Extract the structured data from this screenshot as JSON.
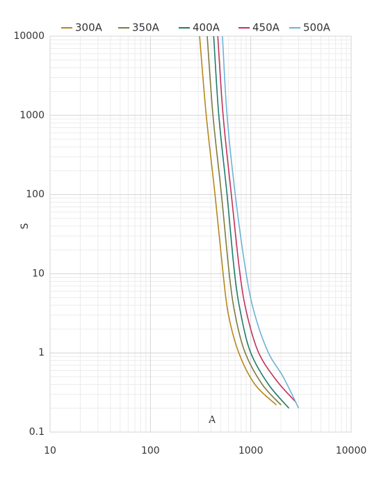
{
  "chart_data": {
    "type": "line",
    "log_x": true,
    "log_y": true,
    "grid": true,
    "x_label": "A",
    "y_label": "S",
    "xlim": [
      10,
      10000
    ],
    "xticks": [
      10,
      100,
      1000,
      10000
    ],
    "ylim": [
      0.1,
      10000
    ],
    "yticks": [
      0.1,
      1,
      10,
      100,
      1000,
      10000
    ],
    "series": [
      {
        "name": "300A",
        "color": "#b5861c",
        "x": [
          309,
          360,
          440,
          530,
          600,
          760,
          1100,
          1800
        ],
        "values": [
          10000,
          1000,
          100,
          10,
          3,
          1,
          0.4,
          0.22
        ]
      },
      {
        "name": "350A",
        "color": "#7d7a3e",
        "x": [
          368,
          420,
          510,
          610,
          700,
          880,
          1300,
          2000
        ],
        "values": [
          10000,
          1000,
          100,
          10,
          3,
          1,
          0.4,
          0.22
        ]
      },
      {
        "name": "400A",
        "color": "#1f7a68",
        "x": [
          427,
          480,
          580,
          690,
          800,
          1000,
          1500,
          2400
        ],
        "values": [
          10000,
          1000,
          100,
          10,
          3,
          1,
          0.4,
          0.2
        ]
      },
      {
        "name": "450A",
        "color": "#c2305c",
        "x": [
          469,
          530,
          640,
          780,
          920,
          1200,
          1800,
          2800
        ],
        "values": [
          10000,
          1000,
          100,
          10,
          3,
          1,
          0.45,
          0.24
        ]
      },
      {
        "name": "500A",
        "color": "#6cb2d8",
        "x": [
          522,
          580,
          700,
          900,
          1100,
          1500,
          2100,
          3000
        ],
        "values": [
          10000,
          1000,
          100,
          10,
          3,
          1,
          0.5,
          0.2
        ]
      }
    ]
  }
}
